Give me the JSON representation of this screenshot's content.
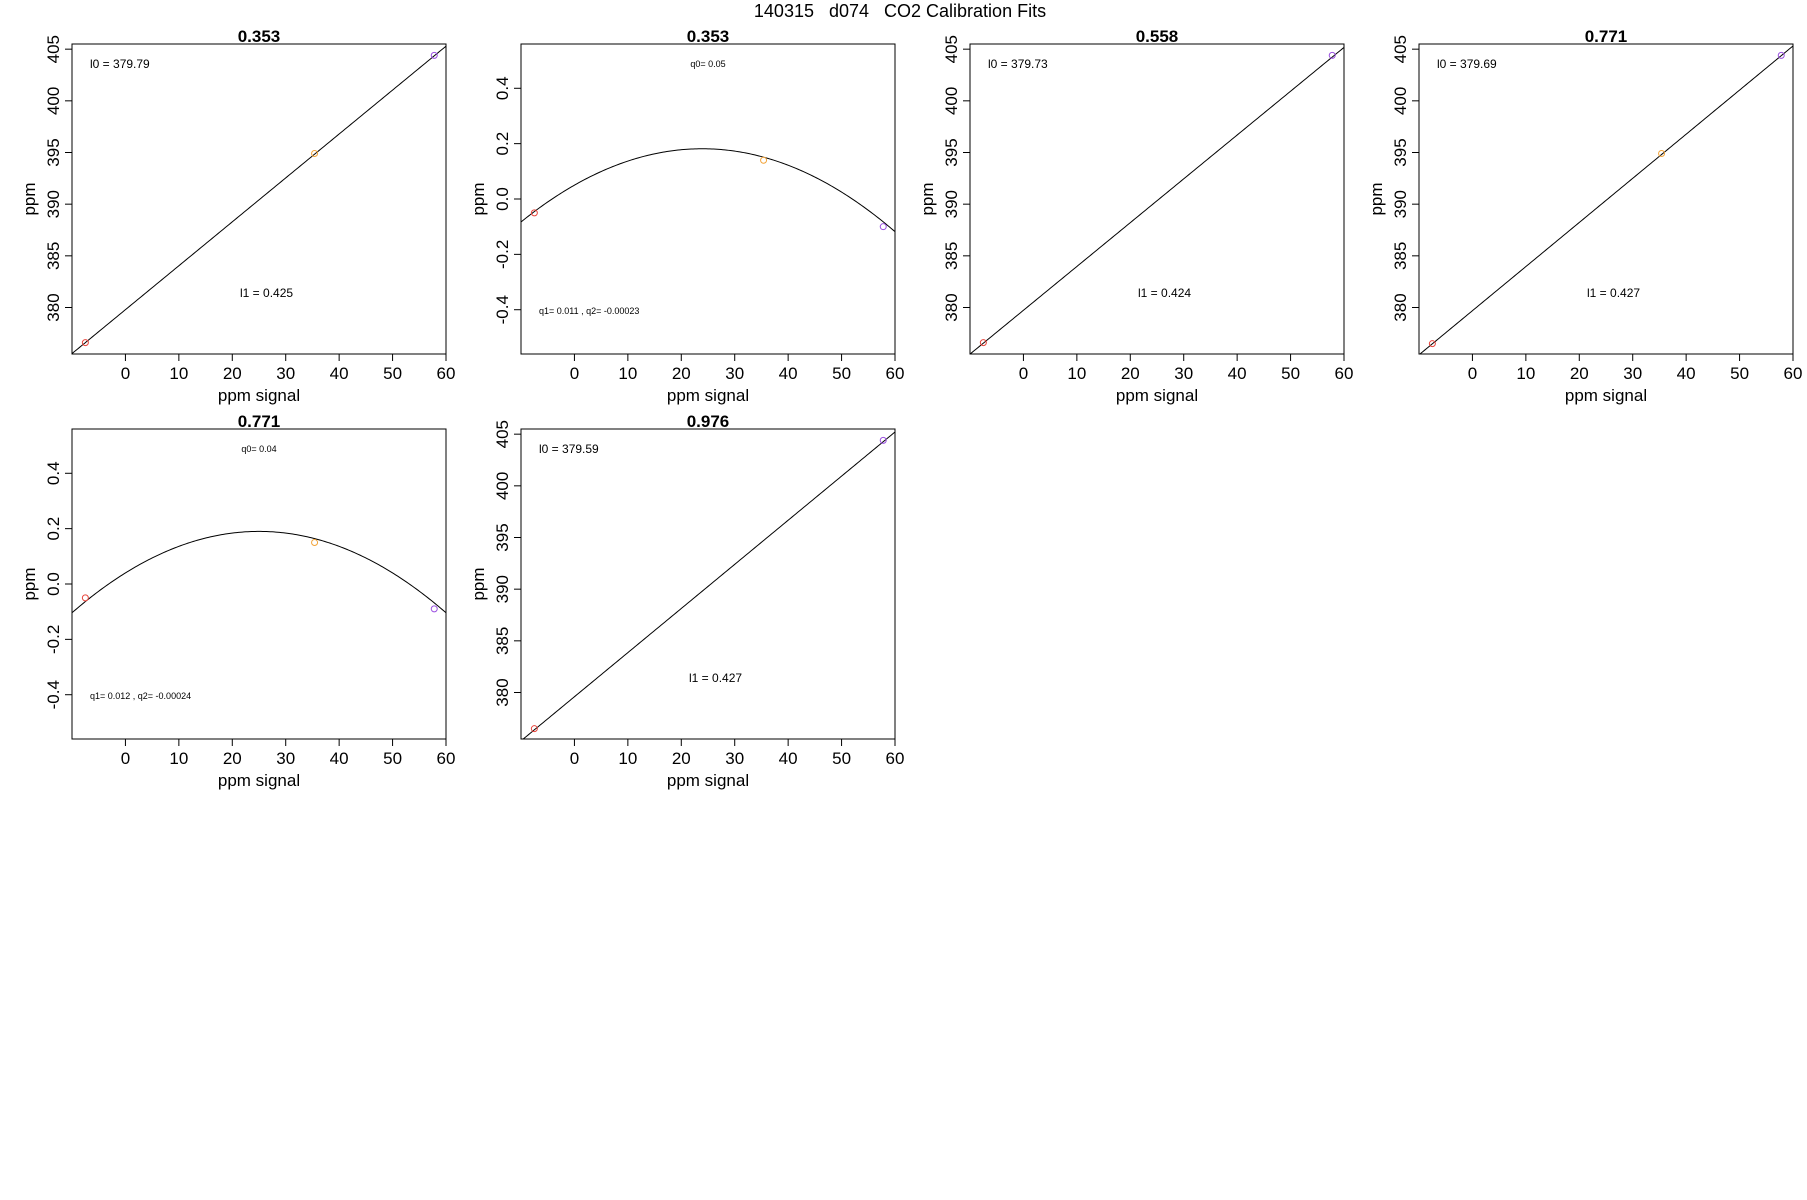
{
  "page": {
    "title": "140315   d074   CO2 Calibration Fits"
  },
  "colors": {
    "axis": "#000000",
    "fit_line": "#000000",
    "point_low": "#e8453c",
    "point_mid": "#f2a43a",
    "point_high": "#9a4fe0"
  },
  "chart_data": [
    {
      "type": "scatter",
      "panel_title": "0.353",
      "xlabel": "ppm signal",
      "ylabel": "ppm",
      "xlim": [
        -10,
        60
      ],
      "ylim": [
        375.5,
        405.5
      ],
      "xticks": [
        "0",
        "10",
        "20",
        "30",
        "40",
        "50",
        "60"
      ],
      "yticks": [
        "380",
        "385",
        "390",
        "395",
        "400",
        "405"
      ],
      "fit": {
        "kind": "linear",
        "intercept": 379.79,
        "slope": 0.425
      },
      "points": [
        {
          "x": -7.5,
          "y": 376.6
        },
        {
          "x": 35.4,
          "y": 394.9
        },
        {
          "x": 57.8,
          "y": 404.4
        }
      ],
      "annotations": [
        {
          "text": "l0 =  379.79"
        },
        {
          "text": "l1 =  0.425"
        }
      ]
    },
    {
      "type": "scatter",
      "panel_title": "0.353",
      "xlabel": "ppm signal",
      "ylabel": "ppm",
      "xlim": [
        -10,
        60
      ],
      "ylim": [
        -0.56,
        0.56
      ],
      "xticks": [
        "0",
        "10",
        "20",
        "30",
        "40",
        "50",
        "60"
      ],
      "yticks": [
        "-0.4",
        "-0.2",
        "0.0",
        "0.2",
        "0.4"
      ],
      "fit": {
        "kind": "quadratic",
        "q0": 0.05,
        "q1": 0.011,
        "q2": -0.00023
      },
      "points": [
        {
          "x": -7.5,
          "y": -0.05
        },
        {
          "x": 35.4,
          "y": 0.14
        },
        {
          "x": 57.8,
          "y": -0.1
        }
      ],
      "annotations": [
        {
          "text": "q0= 0.05"
        },
        {
          "text": "q1= 0.011 , q2= -0.00023"
        }
      ]
    },
    {
      "type": "scatter",
      "panel_title": "0.558",
      "xlabel": "ppm signal",
      "ylabel": "ppm",
      "xlim": [
        -10,
        60
      ],
      "ylim": [
        375.5,
        405.5
      ],
      "xticks": [
        "0",
        "10",
        "20",
        "30",
        "40",
        "50",
        "60"
      ],
      "yticks": [
        "380",
        "385",
        "390",
        "395",
        "400",
        "405"
      ],
      "fit": {
        "kind": "linear",
        "intercept": 379.73,
        "slope": 0.424
      },
      "points": [
        {
          "x": -7.5,
          "y": 376.6
        },
        {
          "x": 57.8,
          "y": 404.4
        }
      ],
      "annotations": [
        {
          "text": "l0 =  379.73"
        },
        {
          "text": "l1 =  0.424"
        }
      ]
    },
    {
      "type": "scatter",
      "panel_title": "0.771",
      "xlabel": "ppm signal",
      "ylabel": "ppm",
      "xlim": [
        -10,
        60
      ],
      "ylim": [
        375.5,
        405.5
      ],
      "xticks": [
        "0",
        "10",
        "20",
        "30",
        "40",
        "50",
        "60"
      ],
      "yticks": [
        "380",
        "385",
        "390",
        "395",
        "400",
        "405"
      ],
      "fit": {
        "kind": "linear",
        "intercept": 379.69,
        "slope": 0.427
      },
      "points": [
        {
          "x": -7.5,
          "y": 376.5
        },
        {
          "x": 35.4,
          "y": 394.9
        },
        {
          "x": 57.8,
          "y": 404.4
        }
      ],
      "annotations": [
        {
          "text": "l0 =  379.69"
        },
        {
          "text": "l1 =  0.427"
        }
      ]
    },
    {
      "type": "scatter",
      "panel_title": "0.771",
      "xlabel": "ppm signal",
      "ylabel": "ppm",
      "xlim": [
        -10,
        60
      ],
      "ylim": [
        -0.56,
        0.56
      ],
      "xticks": [
        "0",
        "10",
        "20",
        "30",
        "40",
        "50",
        "60"
      ],
      "yticks": [
        "-0.4",
        "-0.2",
        "0.0",
        "0.2",
        "0.4"
      ],
      "fit": {
        "kind": "quadratic",
        "q0": 0.04,
        "q1": 0.012,
        "q2": -0.00024
      },
      "points": [
        {
          "x": -7.5,
          "y": -0.05
        },
        {
          "x": 35.4,
          "y": 0.15
        },
        {
          "x": 57.8,
          "y": -0.09
        }
      ],
      "annotations": [
        {
          "text": "q0= 0.04"
        },
        {
          "text": "q1= 0.012 , q2= -0.00024"
        }
      ]
    },
    {
      "type": "scatter",
      "panel_title": "0.976",
      "xlabel": "ppm signal",
      "ylabel": "ppm",
      "xlim": [
        -10,
        60
      ],
      "ylim": [
        375.5,
        405.5
      ],
      "xticks": [
        "0",
        "10",
        "20",
        "30",
        "40",
        "50",
        "60"
      ],
      "yticks": [
        "380",
        "385",
        "390",
        "395",
        "400",
        "405"
      ],
      "fit": {
        "kind": "linear",
        "intercept": 379.59,
        "slope": 0.427
      },
      "points": [
        {
          "x": -7.5,
          "y": 376.5
        },
        {
          "x": 57.8,
          "y": 404.4
        }
      ],
      "annotations": [
        {
          "text": "l0 =  379.59"
        },
        {
          "text": "l1 =  0.427"
        }
      ]
    }
  ]
}
